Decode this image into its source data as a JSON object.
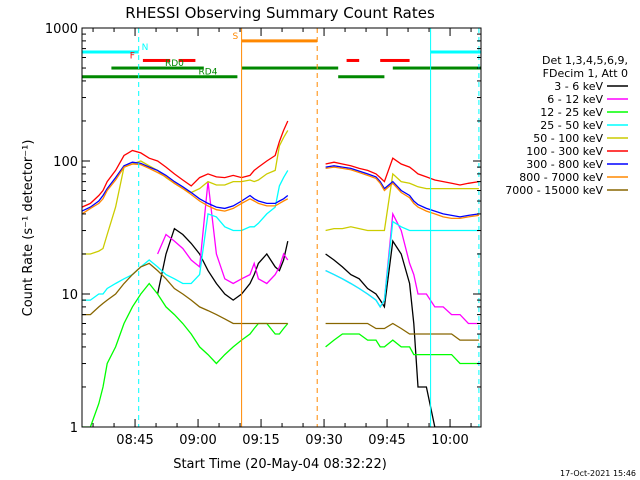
{
  "chart_data": {
    "type": "line",
    "title": "RHESSI Observing Summary Count Rates",
    "xlabel": "Start Time (20-May-04 08:32:22)",
    "ylabel": "Count Rate (s⁻¹ detector⁻¹)",
    "yscale": "log",
    "ylim": [
      1,
      1000
    ],
    "xlim_minutes": [
      0,
      95
    ],
    "x_ticks": [
      {
        "t": 12.63,
        "label": "08:45"
      },
      {
        "t": 27.63,
        "label": "09:00"
      },
      {
        "t": 42.63,
        "label": "09:15"
      },
      {
        "t": 57.63,
        "label": "09:30"
      },
      {
        "t": 72.63,
        "label": "09:45"
      },
      {
        "t": 87.63,
        "label": "10:00"
      }
    ],
    "y_ticks": [
      {
        "v": 1,
        "label": "1"
      },
      {
        "v": 10,
        "label": "10"
      },
      {
        "v": 100,
        "label": "100"
      },
      {
        "v": 1000,
        "label": "1000"
      }
    ],
    "legend_header": [
      "Det 1,3,4,5,6,9,",
      "FDecim 1, Att 0"
    ],
    "series": [
      {
        "name": "3 - 6 keV",
        "color": "#000000",
        "x": [
          0,
          5,
          10,
          12,
          14,
          16,
          18,
          20,
          22,
          24,
          26,
          28,
          30,
          32,
          34,
          36,
          38,
          40,
          41,
          42,
          44,
          46,
          47,
          48,
          49,
          57,
          58,
          60,
          62,
          64,
          66,
          68,
          70,
          71,
          72,
          74,
          76,
          78,
          79,
          80,
          82,
          84,
          86,
          88,
          90,
          92,
          94.5
        ],
        "y": [
          null,
          null,
          null,
          null,
          null,
          null,
          10,
          20,
          31,
          28,
          24,
          20,
          15,
          12,
          10,
          9,
          10,
          12,
          14,
          17,
          20,
          16,
          15,
          18,
          25,
          null,
          20,
          18,
          16,
          14,
          13,
          11,
          10,
          9,
          8,
          25,
          20,
          12,
          6,
          2,
          2,
          1,
          1,
          1,
          1,
          1,
          1
        ]
      },
      {
        "name": "6 - 12 keV",
        "color": "#ff00ff",
        "x": [
          0,
          5,
          10,
          12,
          14,
          16,
          18,
          20,
          22,
          24,
          26,
          28,
          30,
          32,
          34,
          36,
          38,
          40,
          41,
          42,
          44,
          46,
          47,
          48,
          49,
          57,
          58,
          60,
          62,
          64,
          66,
          68,
          70,
          71,
          72,
          74,
          76,
          78,
          79,
          80,
          82,
          84,
          86,
          88,
          90,
          92,
          94.5
        ],
        "y": [
          null,
          null,
          null,
          null,
          null,
          null,
          20,
          28,
          25,
          22,
          18,
          16,
          70,
          20,
          13,
          12,
          13,
          14,
          17,
          13,
          12,
          14,
          16,
          20,
          18,
          null,
          15,
          14,
          13,
          12,
          11,
          10,
          9,
          8,
          9,
          40,
          30,
          17,
          14,
          10,
          10,
          8,
          8,
          7,
          7,
          6,
          6
        ]
      },
      {
        "name": "12 - 25 keV",
        "color": "#00ff00",
        "x": [
          0,
          2,
          4,
          5,
          6,
          8,
          10,
          12,
          14,
          16,
          18,
          20,
          22,
          24,
          26,
          28,
          30,
          32,
          34,
          36,
          38,
          40,
          41,
          42,
          44,
          46,
          47,
          48,
          49,
          57,
          58,
          60,
          62,
          64,
          66,
          68,
          70,
          71,
          72,
          74,
          76,
          78,
          79,
          80,
          82,
          84,
          86,
          88,
          90,
          92,
          94.5
        ],
        "y": [
          1,
          1,
          1.5,
          2,
          3,
          4,
          6,
          8,
          10,
          12,
          10,
          8,
          7,
          6,
          5,
          4,
          3.5,
          3,
          3.5,
          4,
          4.5,
          5,
          5.5,
          6,
          6,
          5,
          5,
          5.5,
          6,
          null,
          4,
          4.5,
          5,
          5,
          5,
          4.5,
          4.5,
          4,
          4,
          4.5,
          4,
          4,
          3.5,
          3.5,
          3.5,
          3.5,
          3.5,
          3.5,
          3,
          3,
          3
        ]
      },
      {
        "name": "25 - 50 keV",
        "color": "#00ffff",
        "x": [
          0,
          2,
          4,
          5,
          6,
          8,
          10,
          12,
          14,
          16,
          18,
          20,
          22,
          24,
          26,
          28,
          30,
          32,
          34,
          36,
          38,
          40,
          41,
          42,
          44,
          46,
          47,
          48,
          49,
          57,
          58,
          60,
          62,
          64,
          66,
          68,
          70,
          71,
          72,
          74,
          76,
          78,
          79,
          80,
          82,
          84,
          86,
          88,
          90,
          92,
          94.5
        ],
        "y": [
          9,
          9,
          10,
          10,
          11,
          12,
          13,
          14,
          16,
          18,
          16,
          14,
          13,
          12,
          12,
          14,
          40,
          38,
          32,
          30,
          30,
          32,
          32,
          34,
          40,
          45,
          65,
          75,
          85,
          null,
          15,
          14,
          13,
          12,
          11,
          10,
          9,
          8,
          9,
          35,
          32,
          30,
          30,
          30,
          30,
          30,
          30,
          30,
          30,
          30,
          30
        ]
      },
      {
        "name": "50 - 100 keV",
        "color": "#cccc00",
        "x": [
          0,
          2,
          4,
          5,
          6,
          8,
          10,
          12,
          14,
          16,
          18,
          20,
          22,
          24,
          26,
          28,
          30,
          32,
          34,
          36,
          38,
          40,
          41,
          42,
          44,
          46,
          47,
          48,
          49,
          57,
          58,
          60,
          62,
          64,
          66,
          68,
          70,
          71,
          72,
          74,
          76,
          78,
          79,
          80,
          82,
          84,
          86,
          88,
          90,
          92,
          94.5
        ],
        "y": [
          20,
          20,
          21,
          22,
          28,
          45,
          90,
          95,
          100,
          92,
          85,
          75,
          68,
          62,
          58,
          62,
          70,
          66,
          66,
          70,
          70,
          72,
          70,
          72,
          80,
          85,
          130,
          150,
          170,
          null,
          30,
          31,
          31,
          32,
          31,
          30,
          30,
          30,
          30,
          80,
          70,
          68,
          66,
          64,
          62,
          62,
          62,
          62,
          62,
          62,
          62
        ]
      },
      {
        "name": "100 - 300 keV",
        "color": "#ff0000",
        "x": [
          0,
          2,
          4,
          5,
          6,
          8,
          10,
          12,
          14,
          16,
          18,
          20,
          22,
          24,
          26,
          28,
          30,
          32,
          34,
          36,
          38,
          40,
          41,
          42,
          44,
          46,
          47,
          48,
          49,
          57,
          58,
          60,
          62,
          64,
          66,
          68,
          70,
          71,
          72,
          74,
          76,
          78,
          79,
          80,
          82,
          84,
          86,
          88,
          90,
          92,
          94.5
        ],
        "y": [
          45,
          48,
          55,
          60,
          70,
          85,
          110,
          120,
          115,
          105,
          100,
          90,
          80,
          72,
          65,
          75,
          80,
          76,
          75,
          78,
          75,
          78,
          85,
          90,
          100,
          110,
          140,
          170,
          200,
          null,
          95,
          98,
          95,
          92,
          88,
          85,
          80,
          75,
          70,
          105,
          95,
          90,
          85,
          80,
          76,
          72,
          70,
          68,
          66,
          68,
          70
        ]
      },
      {
        "name": "300 - 800 keV",
        "color": "#0000ff",
        "x": [
          0,
          2,
          4,
          5,
          6,
          8,
          10,
          12,
          14,
          16,
          18,
          20,
          22,
          24,
          26,
          28,
          30,
          32,
          34,
          36,
          38,
          40,
          41,
          42,
          44,
          46,
          47,
          48,
          49,
          57,
          58,
          60,
          62,
          64,
          66,
          68,
          70,
          71,
          72,
          74,
          76,
          78,
          79,
          80,
          82,
          84,
          86,
          88,
          90,
          92,
          94.5
        ],
        "y": [
          42,
          45,
          50,
          55,
          62,
          75,
          92,
          98,
          96,
          90,
          85,
          78,
          70,
          64,
          58,
          52,
          48,
          45,
          44,
          46,
          50,
          55,
          52,
          50,
          48,
          48,
          50,
          52,
          55,
          null,
          90,
          92,
          90,
          88,
          84,
          80,
          76,
          70,
          62,
          70,
          60,
          55,
          50,
          47,
          44,
          42,
          40,
          39,
          38,
          39,
          40
        ]
      },
      {
        "name": "800 - 7000 keV",
        "color": "#ff8800",
        "x": [
          0,
          2,
          4,
          5,
          6,
          8,
          10,
          12,
          14,
          16,
          18,
          20,
          22,
          24,
          26,
          28,
          30,
          32,
          34,
          36,
          38,
          40,
          41,
          42,
          44,
          46,
          47,
          48,
          49,
          57,
          58,
          60,
          62,
          64,
          66,
          68,
          70,
          71,
          72,
          74,
          76,
          78,
          79,
          80,
          82,
          84,
          86,
          88,
          90,
          92,
          94.5
        ],
        "y": [
          40,
          44,
          48,
          52,
          60,
          72,
          90,
          95,
          94,
          88,
          82,
          76,
          68,
          62,
          56,
          50,
          46,
          43,
          42,
          44,
          48,
          52,
          50,
          48,
          46,
          46,
          48,
          50,
          52,
          null,
          88,
          90,
          88,
          86,
          82,
          78,
          74,
          68,
          60,
          68,
          58,
          53,
          48,
          45,
          42,
          40,
          38,
          37,
          37,
          38,
          39
        ]
      },
      {
        "name": "7000 - 15000 keV",
        "color": "#886600",
        "x": [
          0,
          2,
          4,
          5,
          6,
          8,
          10,
          12,
          14,
          16,
          18,
          20,
          22,
          24,
          26,
          28,
          30,
          32,
          34,
          36,
          38,
          40,
          41,
          42,
          44,
          46,
          47,
          48,
          49,
          57,
          58,
          60,
          62,
          64,
          66,
          68,
          70,
          71,
          72,
          74,
          76,
          78,
          79,
          80,
          82,
          84,
          86,
          88,
          90,
          92,
          94.5
        ],
        "y": [
          7,
          7,
          8,
          8.5,
          9,
          10,
          12,
          14,
          16,
          17,
          15,
          13,
          11,
          10,
          9,
          8,
          7.5,
          7,
          6.5,
          6,
          6,
          6,
          6,
          6,
          6,
          6,
          6,
          6,
          6,
          null,
          6,
          6,
          6,
          6,
          6,
          6,
          5.5,
          5.5,
          5.5,
          6,
          5.5,
          5,
          5,
          5,
          5,
          5,
          5,
          5,
          4.5,
          4.5,
          4.5
        ]
      }
    ],
    "status_bars": [
      {
        "label": "N",
        "color": "#00ffff",
        "y": 660,
        "segments": [
          [
            0,
            13.5
          ],
          [
            83,
            95
          ]
        ],
        "label_at": 15
      },
      {
        "label": "S",
        "color": "#ff8800",
        "y": 800,
        "segments": [
          [
            38,
            56
          ]
        ],
        "label_at": 36.5
      },
      {
        "label": "F",
        "color": "#ff0000",
        "y": 570,
        "segments": [
          [
            14.5,
            21
          ],
          [
            23,
            27
          ],
          [
            63,
            66
          ],
          [
            71,
            78
          ]
        ],
        "label_at": 12
      },
      {
        "label": "RD0",
        "color": "#008800",
        "y": 500,
        "segments": [
          [
            7,
            29
          ],
          [
            38,
            61
          ],
          [
            74,
            95
          ]
        ],
        "label_at": 22
      },
      {
        "label": "RD4",
        "color": "#008800",
        "y": 430,
        "segments": [
          [
            0,
            37
          ],
          [
            61,
            72
          ]
        ],
        "label_at": 30
      }
    ],
    "vlines": [
      {
        "t": 13.5,
        "color": "#00ffff",
        "style": "dashed"
      },
      {
        "t": 38,
        "color": "#ff8800",
        "style": "solid"
      },
      {
        "t": 56,
        "color": "#ff8800",
        "style": "dashed"
      },
      {
        "t": 83,
        "color": "#00ffff",
        "style": "solid"
      },
      {
        "t": 94.5,
        "color": "#00ffff",
        "style": "dashed"
      }
    ]
  },
  "footer": {
    "date": "17-Oct-2021 15:46"
  }
}
